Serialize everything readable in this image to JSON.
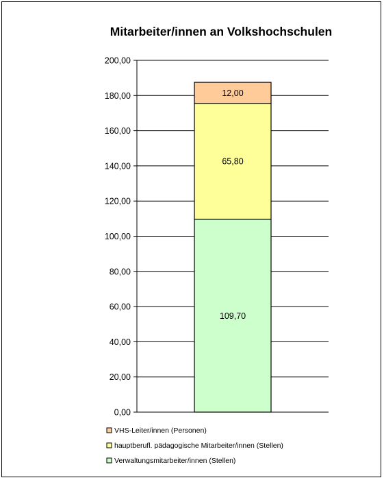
{
  "chart_data": {
    "type": "bar",
    "stacked": true,
    "title": "Mitarbeiter/innen an Volkshochschulen",
    "xlabel": "",
    "ylabel": "",
    "ylim": [
      0,
      200
    ],
    "yticks": [
      "0,00",
      "20,00",
      "40,00",
      "60,00",
      "80,00",
      "100,00",
      "120,00",
      "140,00",
      "160,00",
      "180,00",
      "200,00"
    ],
    "grid": true,
    "legend_position": "bottom-left",
    "categories": [
      ""
    ],
    "series": [
      {
        "name": "Verwaltungsmitarbeiter/innen (Stellen)",
        "values": [
          109.7
        ],
        "label": "109,70",
        "color": "#CCFFCC"
      },
      {
        "name": "hauptberufl. pädagogische Mitarbeiter/innen (Stellen)",
        "values": [
          65.8
        ],
        "label": "65,80",
        "color": "#FFFF99"
      },
      {
        "name": "VHS-Leiter/innen (Personen)",
        "values": [
          12.0
        ],
        "label": "12,00",
        "color": "#FFCC99"
      }
    ],
    "legend_order": [
      2,
      1,
      0
    ]
  }
}
